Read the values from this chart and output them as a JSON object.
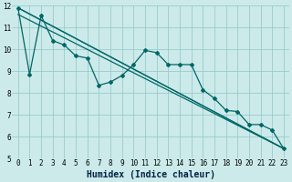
{
  "xlabel": "Humidex (Indice chaleur)",
  "background_color": "#cceaea",
  "grid_color": "#99cccc",
  "line_color": "#006666",
  "xlim": [
    -0.5,
    23.5
  ],
  "ylim": [
    5,
    12
  ],
  "yticks": [
    5,
    6,
    7,
    8,
    9,
    10,
    11,
    12
  ],
  "xticks": [
    0,
    1,
    2,
    3,
    4,
    5,
    6,
    7,
    8,
    9,
    10,
    11,
    12,
    13,
    14,
    15,
    16,
    17,
    18,
    19,
    20,
    21,
    22,
    23
  ],
  "line1_x": [
    0,
    1,
    2,
    3,
    4,
    5,
    6,
    7,
    8,
    9,
    10,
    11,
    12,
    13,
    14,
    15,
    16,
    17,
    18,
    19,
    20,
    21,
    22,
    23
  ],
  "line1_y": [
    11.9,
    8.85,
    11.55,
    10.4,
    10.2,
    9.7,
    9.6,
    8.35,
    8.5,
    8.8,
    9.3,
    9.95,
    9.85,
    9.3,
    9.3,
    9.3,
    8.15,
    7.75,
    7.2,
    7.15,
    6.55,
    6.55,
    6.3,
    5.45
  ],
  "line2_x": [
    0,
    23
  ],
  "line2_y": [
    11.9,
    5.45
  ],
  "line3_x": [
    0,
    23
  ],
  "line3_y": [
    11.9,
    5.45
  ],
  "line4_x": [
    0,
    23
  ],
  "line4_y": [
    11.9,
    5.45
  ],
  "marker": "D",
  "marker_size": 2.0,
  "linewidth": 0.9,
  "tick_fontsize": 5.5,
  "xlabel_fontsize": 7
}
